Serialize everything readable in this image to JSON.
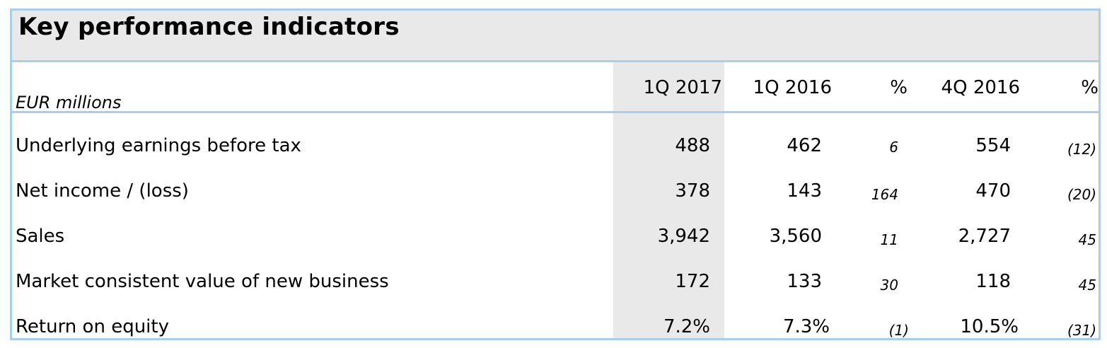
{
  "title": "Key performance indicators",
  "unit_label": "EUR millions",
  "columns": [
    "1Q 2017",
    "1Q 2016",
    "%",
    "4Q 2016",
    "%"
  ],
  "rows": [
    {
      "label": "Underlying earnings before tax",
      "q1_2017": "488",
      "q1_2016": "462",
      "pct_yoy": "6",
      "q4_2016": "554",
      "pct_qoq": "(12)"
    },
    {
      "label": "Net income / (loss)",
      "q1_2017": "378",
      "q1_2016": "143",
      "pct_yoy": "164",
      "q4_2016": "470",
      "pct_qoq": "(20)"
    },
    {
      "label": "Sales",
      "q1_2017": "3,942",
      "q1_2016": "3,560",
      "pct_yoy": "11",
      "q4_2016": "2,727",
      "pct_qoq": "45"
    },
    {
      "label": "Market consistent value of new business",
      "q1_2017": "172",
      "q1_2016": "133",
      "pct_yoy": "30",
      "q4_2016": "118",
      "pct_qoq": "45"
    },
    {
      "label": "Return on equity",
      "q1_2017": "7.2%",
      "q1_2016": "7.3%",
      "pct_yoy": "(1)",
      "q4_2016": "10.5%",
      "pct_qoq": "(31)"
    }
  ],
  "colors": {
    "border": "#a7cdf0",
    "shade": "#e9e9e9"
  }
}
